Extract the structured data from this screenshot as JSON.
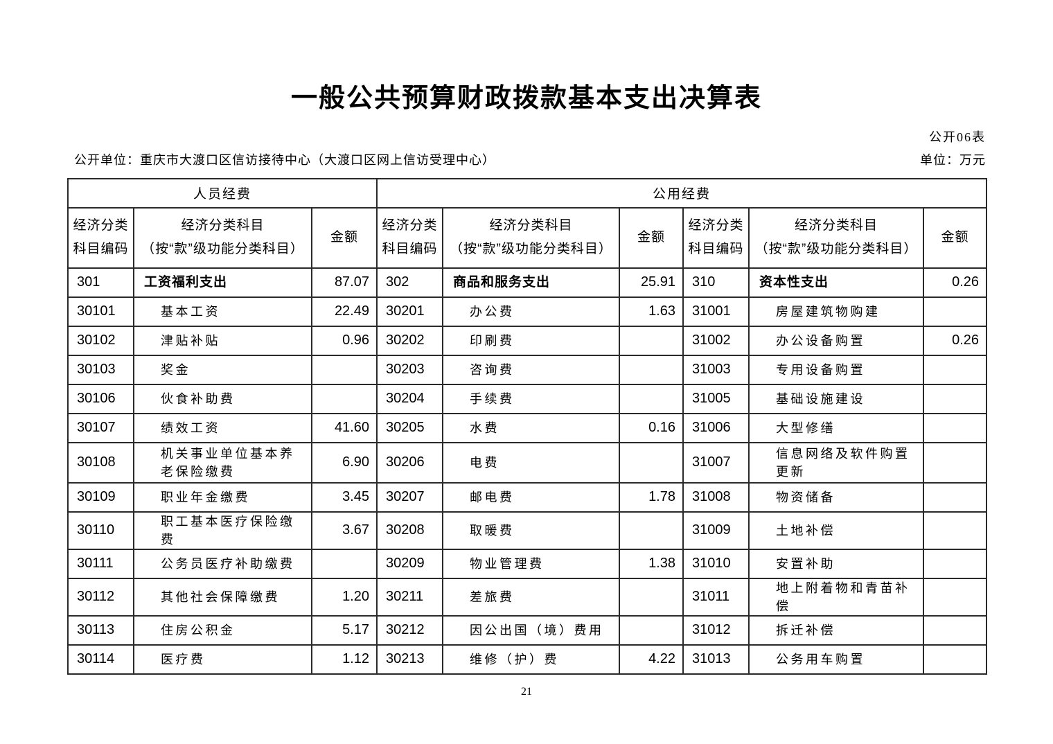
{
  "page": {
    "title": "一般公共预算财政拨款基本支出决算表",
    "form_code": "公开06表",
    "publishing_unit": "公开单位：重庆市大渡口区信访接待中心（大渡口区网上信访受理中心）",
    "unit_label": "单位：万元",
    "page_number": "21"
  },
  "table": {
    "groups": [
      {
        "label": "人员经费"
      },
      {
        "label": "公用经费"
      }
    ],
    "headers": {
      "code_line1": "经济分类",
      "code_line2": "科目编码",
      "subject_line1": "经济分类科目",
      "subject_line2": "（按“款”级功能分类科目）",
      "amount": "金额"
    },
    "rows": [
      {
        "cols": [
          {
            "code": "301",
            "subject": "工资福利支出",
            "amount": "87.07",
            "bold": true
          },
          {
            "code": "302",
            "subject": "商品和服务支出",
            "amount": "25.91",
            "bold": true
          },
          {
            "code": "310",
            "subject": "资本性支出",
            "amount": "0.26",
            "bold": true
          }
        ]
      },
      {
        "cols": [
          {
            "code": "30101",
            "subject": "基本工资",
            "amount": "22.49"
          },
          {
            "code": "30201",
            "subject": "办公费",
            "amount": "1.63"
          },
          {
            "code": "31001",
            "subject": "房屋建筑物购建",
            "amount": ""
          }
        ]
      },
      {
        "cols": [
          {
            "code": "30102",
            "subject": "津贴补贴",
            "amount": "0.96"
          },
          {
            "code": "30202",
            "subject": "印刷费",
            "amount": ""
          },
          {
            "code": "31002",
            "subject": "办公设备购置",
            "amount": "0.26"
          }
        ]
      },
      {
        "cols": [
          {
            "code": "30103",
            "subject": "奖金",
            "amount": ""
          },
          {
            "code": "30203",
            "subject": "咨询费",
            "amount": ""
          },
          {
            "code": "31003",
            "subject": "专用设备购置",
            "amount": ""
          }
        ]
      },
      {
        "cols": [
          {
            "code": "30106",
            "subject": "伙食补助费",
            "amount": ""
          },
          {
            "code": "30204",
            "subject": "手续费",
            "amount": ""
          },
          {
            "code": "31005",
            "subject": "基础设施建设",
            "amount": ""
          }
        ]
      },
      {
        "cols": [
          {
            "code": "30107",
            "subject": "绩效工资",
            "amount": "41.60"
          },
          {
            "code": "30205",
            "subject": "水费",
            "amount": "0.16"
          },
          {
            "code": "31006",
            "subject": "大型修缮",
            "amount": ""
          }
        ]
      },
      {
        "tall": true,
        "cols": [
          {
            "code": "30108",
            "subject": "机关事业单位基本养老保险缴费",
            "amount": "6.90"
          },
          {
            "code": "30206",
            "subject": "电费",
            "amount": ""
          },
          {
            "code": "31007",
            "subject": "信息网络及软件购置更新",
            "amount": ""
          }
        ]
      },
      {
        "cols": [
          {
            "code": "30109",
            "subject": "职业年金缴费",
            "amount": "3.45"
          },
          {
            "code": "30207",
            "subject": "邮电费",
            "amount": "1.78"
          },
          {
            "code": "31008",
            "subject": "物资储备",
            "amount": ""
          }
        ]
      },
      {
        "cols": [
          {
            "code": "30110",
            "subject": "职工基本医疗保险缴费",
            "amount": "3.67"
          },
          {
            "code": "30208",
            "subject": "取暖费",
            "amount": ""
          },
          {
            "code": "31009",
            "subject": "土地补偿",
            "amount": ""
          }
        ]
      },
      {
        "cols": [
          {
            "code": "30111",
            "subject": "公务员医疗补助缴费",
            "amount": ""
          },
          {
            "code": "30209",
            "subject": "物业管理费",
            "amount": "1.38"
          },
          {
            "code": "31010",
            "subject": "安置补助",
            "amount": ""
          }
        ]
      },
      {
        "cols": [
          {
            "code": "30112",
            "subject": "其他社会保障缴费",
            "amount": "1.20"
          },
          {
            "code": "30211",
            "subject": "差旅费",
            "amount": ""
          },
          {
            "code": "31011",
            "subject": "地上附着物和青苗补偿",
            "amount": ""
          }
        ]
      },
      {
        "cols": [
          {
            "code": "30113",
            "subject": "住房公积金",
            "amount": "5.17"
          },
          {
            "code": "30212",
            "subject": "因公出国（境）费用",
            "amount": ""
          },
          {
            "code": "31012",
            "subject": "拆迁补偿",
            "amount": ""
          }
        ]
      },
      {
        "cols": [
          {
            "code": "30114",
            "subject": "医疗费",
            "amount": "1.12"
          },
          {
            "code": "30213",
            "subject": "维修（护）费",
            "amount": "4.22"
          },
          {
            "code": "31013",
            "subject": "公务用车购置",
            "amount": ""
          }
        ]
      }
    ]
  }
}
